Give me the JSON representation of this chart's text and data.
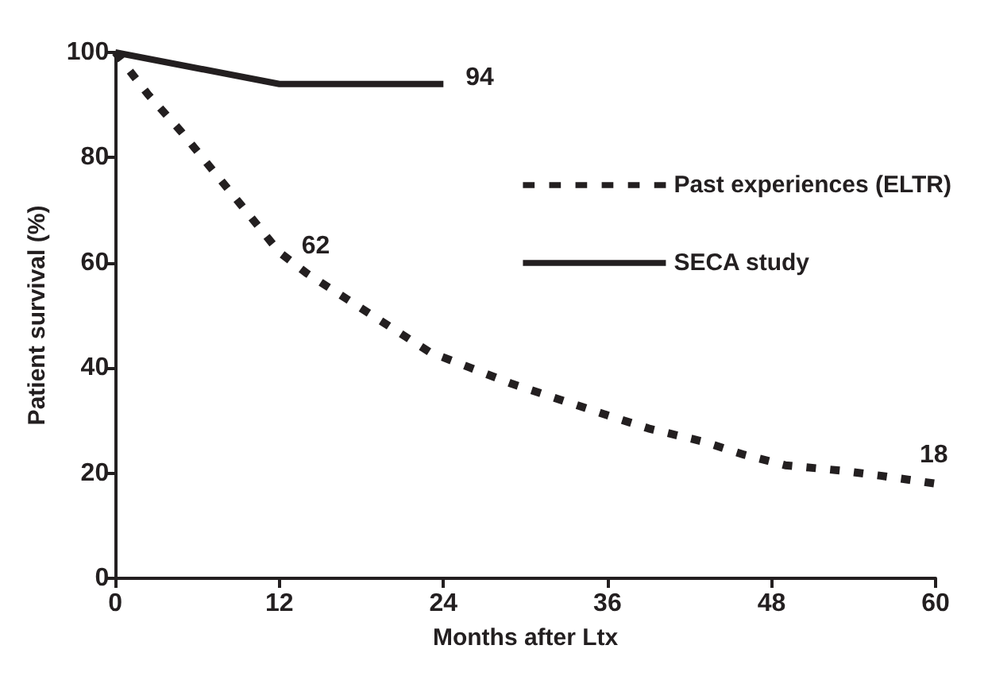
{
  "chart_data": {
    "type": "line",
    "xlabel": "Months after Ltx",
    "ylabel": "Patient survival (%)",
    "xlim": [
      0,
      60
    ],
    "xticks": [
      0,
      12,
      24,
      36,
      48,
      60
    ],
    "ylim": [
      0,
      100
    ],
    "yticks": [
      0,
      20,
      40,
      60,
      80,
      100
    ],
    "grid": false,
    "legend": "right",
    "marker": "none",
    "series": [
      {
        "name": "Past experiences (ELTR)",
        "color": "#231f20",
        "line_style": "dashed",
        "x": [
          0,
          2.4,
          4.8,
          7,
          9.2,
          12,
          14,
          17,
          20,
          23,
          26,
          29,
          32.5,
          36,
          39,
          43,
          46,
          49,
          53,
          56,
          60
        ],
        "values": [
          100,
          92,
          85,
          78,
          71,
          62,
          58,
          53,
          48,
          43,
          40,
          37,
          34,
          31,
          28.5,
          26,
          23.5,
          21.5,
          20.5,
          19.5,
          18
        ],
        "value_labels": [
          null,
          null,
          null,
          null,
          null,
          "62",
          null,
          null,
          null,
          null,
          null,
          null,
          null,
          null,
          null,
          null,
          null,
          null,
          null,
          null,
          "18"
        ]
      },
      {
        "name": "SECA study",
        "color": "#231f20",
        "line_style": "solid",
        "x": [
          0,
          12,
          24
        ],
        "values": [
          100,
          94,
          94
        ],
        "value_labels": [
          null,
          null,
          "94"
        ]
      }
    ]
  }
}
